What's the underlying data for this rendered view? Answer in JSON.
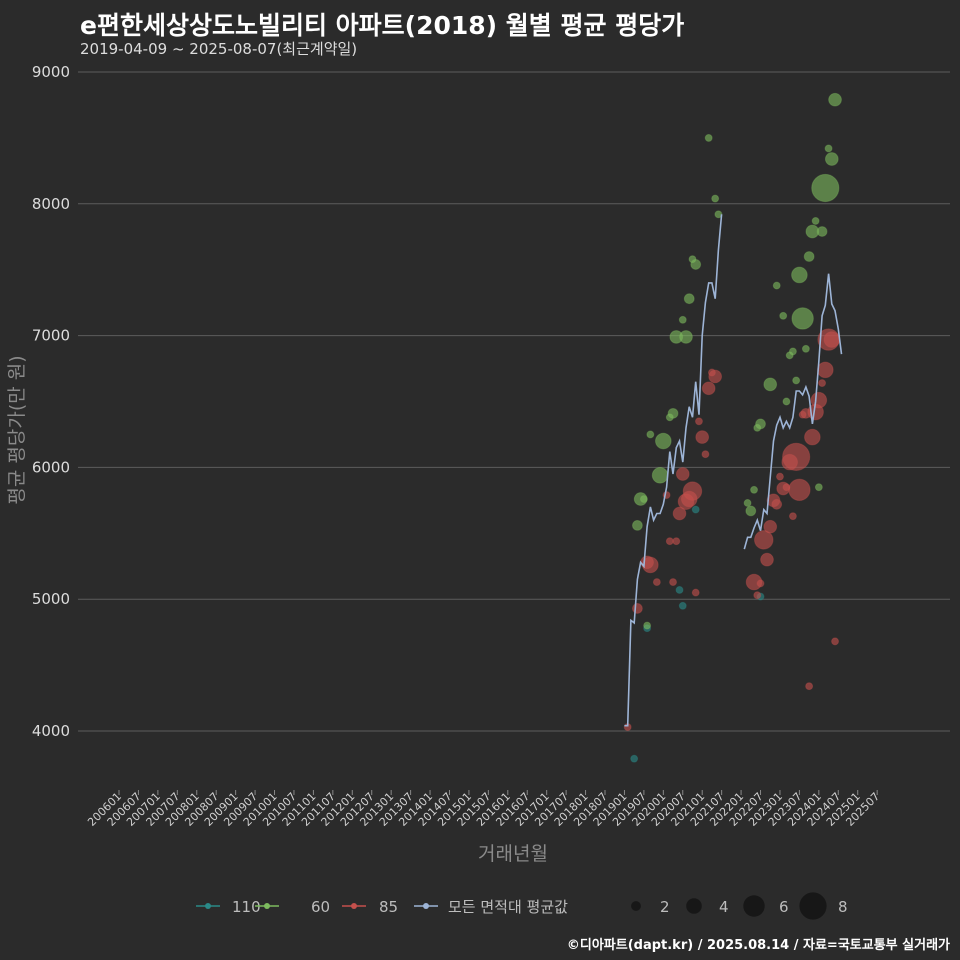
{
  "header": {
    "title": "e편한세상상도노빌리티 아파트(2018) 월별 평균 평당가",
    "subtitle": "2019-04-09 ~ 2025-08-07(최근계약일)"
  },
  "footer": {
    "credit": "©디아파트(dapt.kr) / 2025.08.14 / 자료=국토교통부 실거래가"
  },
  "colors": {
    "background": "#2b2b2b",
    "grid": "#5c5c5c",
    "s110": "#2a8a88",
    "s60": "#7dbb5e",
    "s85": "#c4504c",
    "avg": "#9db4d6"
  },
  "chart_data": {
    "type": "scatter",
    "title": "e편한세상상도노빌리티 아파트(2018) 월별 평균 평당가",
    "xlabel": "거래년월",
    "ylabel": "평균 평당가(만 원)",
    "ylim": [
      3500,
      9100
    ],
    "yticks": [
      4000,
      5000,
      6000,
      7000,
      8000,
      9000
    ],
    "x_range_months": [
      0,
      236
    ],
    "x_origin": "200601",
    "xtick_labels": [
      "200601",
      "200607",
      "200701",
      "200707",
      "200801",
      "200807",
      "200901",
      "200907",
      "201001",
      "201007",
      "201101",
      "201107",
      "201201",
      "201207",
      "201301",
      "201307",
      "201401",
      "201407",
      "201501",
      "201507",
      "201601",
      "201607",
      "201701",
      "201707",
      "201801",
      "201807",
      "201901",
      "201907",
      "202001",
      "202007",
      "202101",
      "202107",
      "202201",
      "202207",
      "202301",
      "202307",
      "202401",
      "202407",
      "202501",
      "202507"
    ],
    "legend_series": [
      {
        "name": "110",
        "color_key": "s110"
      },
      {
        "name": "60",
        "color_key": "s60"
      },
      {
        "name": "85",
        "color_key": "s85"
      },
      {
        "name": "모든 면적대 평균값",
        "color_key": "avg"
      }
    ],
    "size_legend": [
      "2",
      "4",
      "6",
      "8"
    ],
    "series": [
      {
        "name": "110",
        "color_key": "s110",
        "points": [
          [
            159,
            3790,
            1
          ],
          [
            163,
            4780,
            1
          ],
          [
            173,
            5070,
            1
          ],
          [
            174,
            4950,
            1
          ],
          [
            178,
            5680,
            1
          ],
          [
            198,
            5020,
            1
          ]
        ]
      },
      {
        "name": "60",
        "color_key": "s60",
        "points": [
          [
            160,
            5560,
            2
          ],
          [
            161,
            5760,
            3
          ],
          [
            162,
            5760,
            1
          ],
          [
            163,
            4800,
            1
          ],
          [
            164,
            6250,
            1
          ],
          [
            167,
            5940,
            4
          ],
          [
            168,
            6200,
            4
          ],
          [
            170,
            6380,
            1
          ],
          [
            171,
            6410,
            2
          ],
          [
            172,
            6990,
            3
          ],
          [
            174,
            7120,
            1
          ],
          [
            175,
            6990,
            3
          ],
          [
            176,
            7280,
            2
          ],
          [
            177,
            7580,
            1
          ],
          [
            178,
            7540,
            2
          ],
          [
            182,
            8500,
            1
          ],
          [
            184,
            8040,
            1
          ],
          [
            185,
            7920,
            1
          ],
          [
            194,
            5730,
            1
          ],
          [
            195,
            5670,
            2
          ],
          [
            196,
            5830,
            1
          ],
          [
            197,
            6300,
            1
          ],
          [
            198,
            6330,
            2
          ],
          [
            201,
            6630,
            3
          ],
          [
            203,
            7380,
            1
          ],
          [
            205,
            7150,
            1
          ],
          [
            206,
            6500,
            1
          ],
          [
            207,
            6850,
            1
          ],
          [
            208,
            6880,
            1
          ],
          [
            209,
            6660,
            1
          ],
          [
            210,
            7460,
            4
          ],
          [
            211,
            7130,
            6
          ],
          [
            212,
            6900,
            1
          ],
          [
            213,
            7600,
            2
          ],
          [
            214,
            7790,
            3
          ],
          [
            215,
            7870,
            1
          ],
          [
            216,
            5850,
            1
          ],
          [
            217,
            7790,
            2
          ],
          [
            218,
            8120,
            8
          ],
          [
            219,
            8420,
            1
          ],
          [
            220,
            8340,
            3
          ],
          [
            221,
            8790,
            3
          ]
        ]
      },
      {
        "name": "85",
        "color_key": "s85",
        "points": [
          [
            157,
            4030,
            1
          ],
          [
            160,
            4930,
            2
          ],
          [
            163,
            5280,
            3
          ],
          [
            164,
            5260,
            4
          ],
          [
            166,
            5130,
            1
          ],
          [
            169,
            5790,
            1
          ],
          [
            170,
            5440,
            1
          ],
          [
            171,
            5130,
            1
          ],
          [
            172,
            5440,
            1
          ],
          [
            173,
            5650,
            3
          ],
          [
            174,
            5950,
            3
          ],
          [
            175,
            5740,
            4
          ],
          [
            176,
            5760,
            4
          ],
          [
            177,
            5820,
            5
          ],
          [
            178,
            5050,
            1
          ],
          [
            179,
            6350,
            1
          ],
          [
            180,
            6230,
            3
          ],
          [
            181,
            6100,
            1
          ],
          [
            182,
            6600,
            3
          ],
          [
            183,
            6720,
            1
          ],
          [
            184,
            6690,
            3
          ],
          [
            196,
            5130,
            4
          ],
          [
            197,
            5030,
            1
          ],
          [
            198,
            5120,
            1
          ],
          [
            199,
            5450,
            5
          ],
          [
            200,
            5300,
            3
          ],
          [
            201,
            5550,
            3
          ],
          [
            202,
            5750,
            3
          ],
          [
            203,
            5720,
            2
          ],
          [
            204,
            5930,
            1
          ],
          [
            205,
            5840,
            3
          ],
          [
            206,
            5850,
            1
          ],
          [
            207,
            6040,
            4
          ],
          [
            208,
            5630,
            1
          ],
          [
            209,
            6080,
            8
          ],
          [
            210,
            5830,
            6
          ],
          [
            211,
            6400,
            1
          ],
          [
            212,
            6410,
            2
          ],
          [
            213,
            4340,
            1
          ],
          [
            214,
            6230,
            4
          ],
          [
            215,
            6420,
            4
          ],
          [
            216,
            6510,
            4
          ],
          [
            217,
            6640,
            1
          ],
          [
            218,
            6740,
            4
          ],
          [
            219,
            6970,
            6
          ],
          [
            220,
            6970,
            4
          ],
          [
            221,
            4680,
            1
          ]
        ]
      }
    ],
    "average_line": {
      "name": "모든 면적대 평균값",
      "points": [
        [
          156,
          4040
        ],
        [
          157,
          4040
        ],
        [
          158,
          4840
        ],
        [
          159,
          4820
        ],
        [
          160,
          5150
        ],
        [
          161,
          5280
        ],
        [
          162,
          5250
        ],
        [
          163,
          5550
        ],
        [
          164,
          5700
        ],
        [
          165,
          5600
        ],
        [
          166,
          5650
        ],
        [
          167,
          5650
        ],
        [
          168,
          5720
        ],
        [
          169,
          5850
        ],
        [
          170,
          6120
        ],
        [
          171,
          5950
        ],
        [
          172,
          6150
        ],
        [
          173,
          6200
        ],
        [
          174,
          6040
        ],
        [
          175,
          6300
        ],
        [
          176,
          6460
        ],
        [
          177,
          6380
        ],
        [
          178,
          6650
        ],
        [
          179,
          6400
        ],
        [
          180,
          7000
        ],
        [
          181,
          7250
        ],
        [
          182,
          7400
        ],
        [
          183,
          7400
        ],
        [
          184,
          7280
        ],
        [
          185,
          7650
        ],
        [
          186,
          7920
        ],
        [
          193,
          5380
        ],
        [
          194,
          5470
        ],
        [
          195,
          5470
        ],
        [
          196,
          5540
        ],
        [
          197,
          5600
        ],
        [
          198,
          5520
        ],
        [
          199,
          5680
        ],
        [
          200,
          5650
        ],
        [
          201,
          5920
        ],
        [
          202,
          6200
        ],
        [
          203,
          6320
        ],
        [
          204,
          6380
        ],
        [
          205,
          6300
        ],
        [
          206,
          6350
        ],
        [
          207,
          6300
        ],
        [
          208,
          6380
        ],
        [
          209,
          6580
        ],
        [
          210,
          6580
        ],
        [
          211,
          6550
        ],
        [
          212,
          6610
        ],
        [
          213,
          6540
        ],
        [
          214,
          6330
        ],
        [
          215,
          6500
        ],
        [
          216,
          6800
        ],
        [
          217,
          7150
        ],
        [
          218,
          7230
        ],
        [
          219,
          7470
        ],
        [
          220,
          7240
        ],
        [
          221,
          7190
        ],
        [
          222,
          7050
        ],
        [
          223,
          6860
        ]
      ]
    }
  }
}
